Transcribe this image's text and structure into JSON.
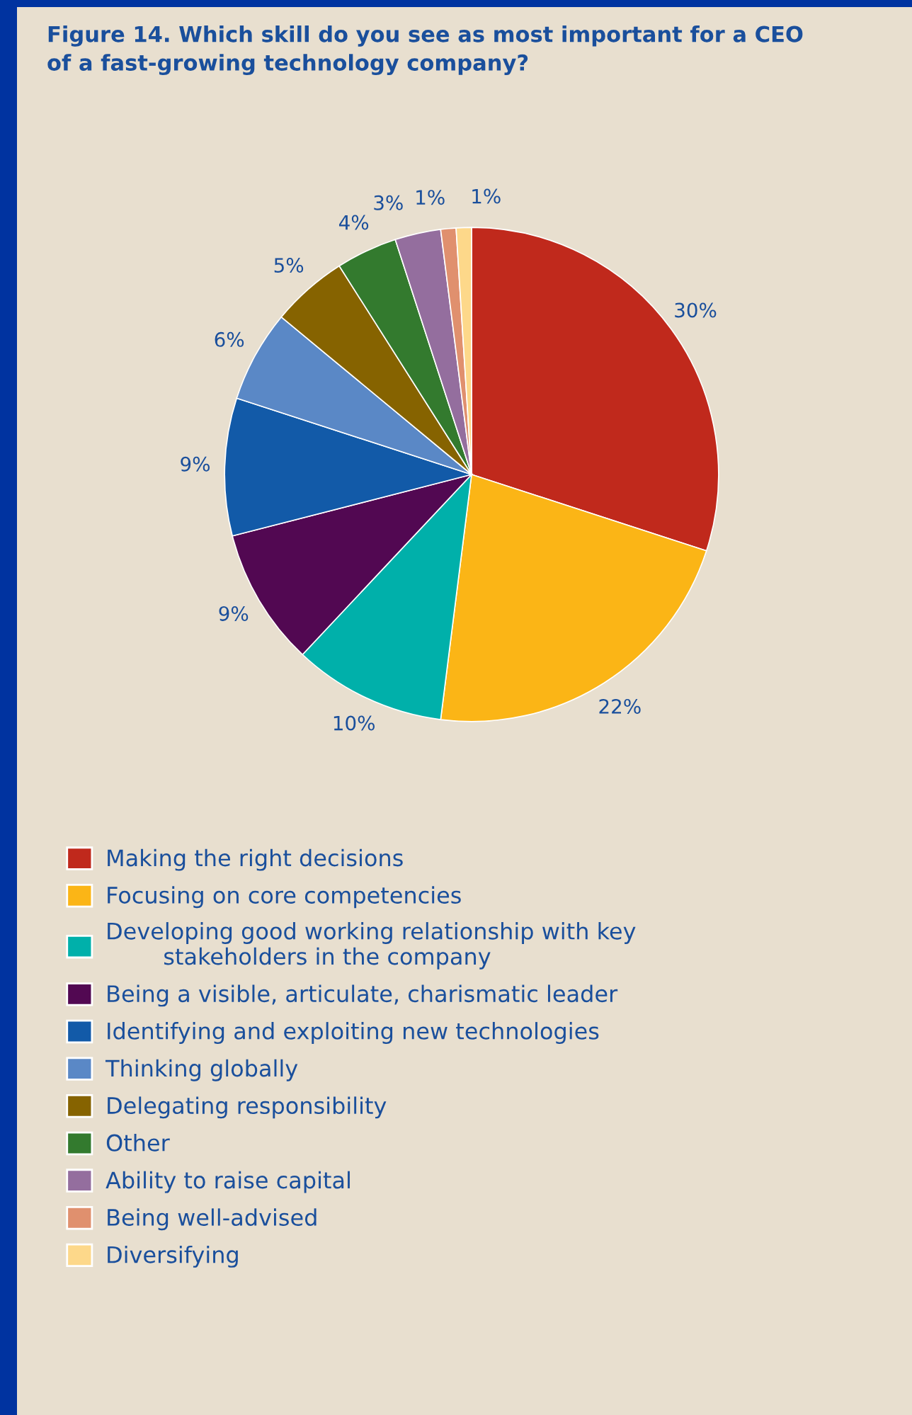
{
  "chart_data": {
    "type": "pie",
    "title": "Figure 14. Which skill do you see as most important for a CEO\nof a fast-growing technology company?",
    "categories": [
      "Making the right decisions",
      "Focusing on core competencies",
      "Developing good working relationship with key\n        stakeholders in the company",
      "Being a visible, articulate, charismatic leader",
      "Identifying and exploiting new technologies",
      "Thinking globally",
      "Delegating responsibility",
      "Other",
      "Ability to raise capital",
      "Being well-advised",
      "Diversifying"
    ],
    "values": [
      30,
      22,
      10,
      9,
      9,
      6,
      5,
      4,
      3,
      1,
      1
    ],
    "value_labels": [
      "30%",
      "22%",
      "10%",
      "9%",
      "9%",
      "6%",
      "5%",
      "4%",
      "3%",
      "1%",
      "1%"
    ],
    "colors": [
      "#c0291c",
      "#fbb516",
      "#00b0aa",
      "#520852",
      "#125aa8",
      "#5a88c6",
      "#866300",
      "#337a2e",
      "#946e9e",
      "#e0906e",
      "#fdd88a"
    ],
    "legend": "bottom"
  }
}
